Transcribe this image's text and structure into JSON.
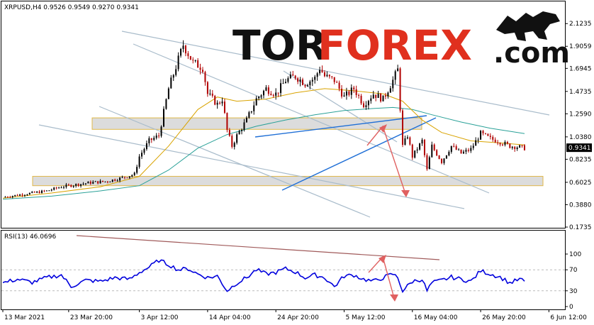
{
  "header": {
    "symbol_line": "XRPUSD,H4  0.9526 0.9549 0.9270 0.9341",
    "rsi_label": "RSI(13) 46.0696"
  },
  "logo": {
    "part1": "TOR",
    "part2": "FOREX",
    "part3": ".com"
  },
  "colors": {
    "bull_candle": "#000000",
    "bear_candle": "#b00000",
    "ma_fast": "#d9a300",
    "ma_slow": "#2aa198",
    "rsi_line": "#0000dd",
    "support_zone": "#dcdcdc",
    "zone_border": "#e0b84a",
    "trend_line": "#1f6fd6",
    "channel_line": "#a9bccb",
    "forecast_arrow": "#e06060",
    "rsi_trend": "#a05a5a",
    "logo_dark": "#111111",
    "logo_red": "#e0301e"
  },
  "chart_data": [
    {
      "type": "candlestick",
      "title": "XRPUSD,H4",
      "ohlc_last": {
        "open": 0.9526,
        "high": 0.9549,
        "low": 0.927,
        "close": 0.9341
      },
      "current_price": 0.9341,
      "ylim": [
        0.1735,
        2.2
      ],
      "y_ticks": [
        2.1235,
        1.9059,
        1.6945,
        1.4735,
        1.259,
        1.038,
        0.8235,
        0.6025,
        0.388,
        0.1735
      ],
      "x_ticks": [
        "13 Mar 2021",
        "23 Mar 20:00",
        "3 Apr 12:00",
        "14 Apr 04:00",
        "24 Apr 20:00",
        "5 May 12:00",
        "16 May 04:00",
        "26 May 20:00",
        "6 Jun 12:00"
      ],
      "zones": [
        {
          "low": 1.11,
          "high": 1.22
        },
        {
          "low": 0.57,
          "high": 0.66
        }
      ],
      "price_path": [
        [
          0,
          0.46
        ],
        [
          3,
          0.48
        ],
        [
          6,
          0.5
        ],
        [
          9,
          0.52
        ],
        [
          12,
          0.56
        ],
        [
          15,
          0.58
        ],
        [
          18,
          0.6
        ],
        [
          21,
          0.61
        ],
        [
          24,
          0.64
        ],
        [
          27,
          0.68
        ],
        [
          28,
          0.85
        ],
        [
          30,
          1.0
        ],
        [
          32,
          1.05
        ],
        [
          34,
          1.5
        ],
        [
          36,
          1.78
        ],
        [
          37,
          1.92
        ],
        [
          39,
          1.75
        ],
        [
          41,
          1.7
        ],
        [
          42,
          1.45
        ],
        [
          44,
          1.35
        ],
        [
          45,
          1.4
        ],
        [
          46,
          1.1
        ],
        [
          47,
          0.95
        ],
        [
          48,
          1.05
        ],
        [
          50,
          1.2
        ],
        [
          52,
          1.4
        ],
        [
          54,
          1.5
        ],
        [
          56,
          1.45
        ],
        [
          58,
          1.58
        ],
        [
          60,
          1.62
        ],
        [
          62,
          1.55
        ],
        [
          64,
          1.6
        ],
        [
          65,
          1.7
        ],
        [
          66,
          1.62
        ],
        [
          68,
          1.58
        ],
        [
          70,
          1.42
        ],
        [
          72,
          1.5
        ],
        [
          74,
          1.35
        ],
        [
          76,
          1.45
        ],
        [
          78,
          1.4
        ],
        [
          80,
          1.58
        ],
        [
          81,
          1.68
        ],
        [
          82,
          0.95
        ],
        [
          83,
          1.05
        ],
        [
          84,
          0.85
        ],
        [
          86,
          1.0
        ],
        [
          87,
          0.72
        ],
        [
          88,
          0.95
        ],
        [
          90,
          0.8
        ],
        [
          92,
          0.95
        ],
        [
          94,
          0.88
        ],
        [
          96,
          0.92
        ],
        [
          98,
          1.07
        ],
        [
          100,
          1.02
        ],
        [
          102,
          0.99
        ],
        [
          104,
          0.95
        ],
        [
          106,
          0.94
        ],
        [
          107,
          0.93
        ]
      ],
      "ma_fast_path": [
        [
          0,
          0.45
        ],
        [
          10,
          0.5
        ],
        [
          20,
          0.56
        ],
        [
          28,
          0.66
        ],
        [
          34,
          0.95
        ],
        [
          40,
          1.3
        ],
        [
          44,
          1.42
        ],
        [
          48,
          1.38
        ],
        [
          54,
          1.4
        ],
        [
          60,
          1.46
        ],
        [
          66,
          1.5
        ],
        [
          72,
          1.48
        ],
        [
          78,
          1.45
        ],
        [
          82,
          1.38
        ],
        [
          86,
          1.2
        ],
        [
          90,
          1.08
        ],
        [
          96,
          1.0
        ],
        [
          102,
          0.98
        ],
        [
          107,
          0.96
        ]
      ],
      "ma_slow_path": [
        [
          0,
          0.44
        ],
        [
          10,
          0.47
        ],
        [
          20,
          0.52
        ],
        [
          28,
          0.57
        ],
        [
          34,
          0.72
        ],
        [
          40,
          0.93
        ],
        [
          46,
          1.06
        ],
        [
          52,
          1.14
        ],
        [
          58,
          1.2
        ],
        [
          64,
          1.25
        ],
        [
          70,
          1.29
        ],
        [
          76,
          1.31
        ],
        [
          80,
          1.32
        ],
        [
          84,
          1.3
        ],
        [
          88,
          1.25
        ],
        [
          94,
          1.18
        ],
        [
          100,
          1.12
        ],
        [
          107,
          1.07
        ]
      ]
    },
    {
      "type": "line",
      "title": "RSI(13)",
      "last_value": 46.0696,
      "ylim": [
        0,
        100
      ],
      "y_ticks": [
        100,
        70,
        30,
        0
      ],
      "levels": [
        70,
        30
      ],
      "rsi_path": [
        [
          0,
          45
        ],
        [
          3,
          52
        ],
        [
          6,
          46
        ],
        [
          9,
          55
        ],
        [
          12,
          60
        ],
        [
          14,
          38
        ],
        [
          17,
          50
        ],
        [
          20,
          48
        ],
        [
          23,
          55
        ],
        [
          26,
          52
        ],
        [
          28,
          65
        ],
        [
          30,
          75
        ],
        [
          32,
          88
        ],
        [
          34,
          80
        ],
        [
          36,
          70
        ],
        [
          38,
          72
        ],
        [
          40,
          62
        ],
        [
          42,
          55
        ],
        [
          44,
          58
        ],
        [
          46,
          30
        ],
        [
          48,
          45
        ],
        [
          50,
          55
        ],
        [
          52,
          70
        ],
        [
          54,
          62
        ],
        [
          56,
          65
        ],
        [
          58,
          72
        ],
        [
          60,
          66
        ],
        [
          62,
          55
        ],
        [
          64,
          60
        ],
        [
          66,
          55
        ],
        [
          68,
          38
        ],
        [
          70,
          58
        ],
        [
          72,
          60
        ],
        [
          74,
          52
        ],
        [
          76,
          48
        ],
        [
          78,
          55
        ],
        [
          80,
          62
        ],
        [
          81,
          55
        ],
        [
          82,
          30
        ],
        [
          84,
          48
        ],
        [
          86,
          52
        ],
        [
          87,
          30
        ],
        [
          88,
          45
        ],
        [
          90,
          50
        ],
        [
          92,
          56
        ],
        [
          94,
          52
        ],
        [
          96,
          48
        ],
        [
          98,
          68
        ],
        [
          100,
          62
        ],
        [
          102,
          56
        ],
        [
          104,
          45
        ],
        [
          106,
          52
        ],
        [
          107,
          48
        ]
      ]
    }
  ]
}
